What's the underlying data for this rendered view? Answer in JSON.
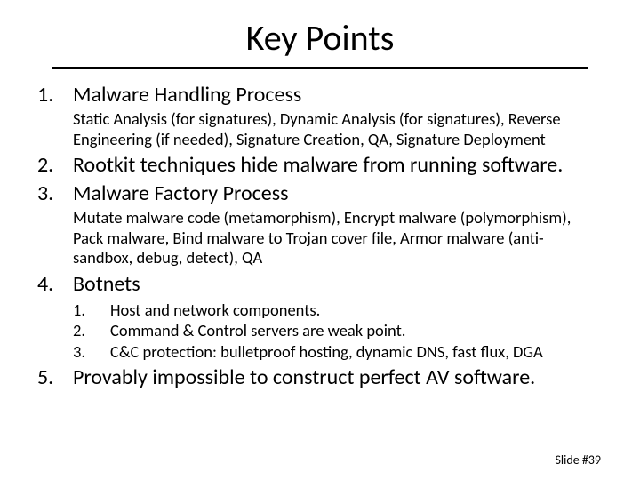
{
  "title": "Key Points",
  "items": [
    {
      "text": "Malware Handling Process",
      "subtext": "Static Analysis (for signatures), Dynamic Analysis (for signatures), Reverse Engineering (if needed), Signature Creation, QA, Signature Deployment"
    },
    {
      "text": "Rootkit techniques hide malware from running software."
    },
    {
      "text": "Malware Factory Process",
      "subtext": "Mutate malware code (metamorphism), Encrypt malware (polymorphism), Pack malware, Bind malware to Trojan cover file, Armor malware (anti-sandbox, debug, detect), QA"
    },
    {
      "text": "Botnets",
      "sublist": [
        "Host and network components.",
        "Command & Control servers are weak point.",
        "C&C protection:  bulletproof hosting, dynamic DNS, fast flux, DGA"
      ]
    },
    {
      "text": "Provably impossible to construct perfect AV software."
    }
  ],
  "footer": "Slide #39"
}
